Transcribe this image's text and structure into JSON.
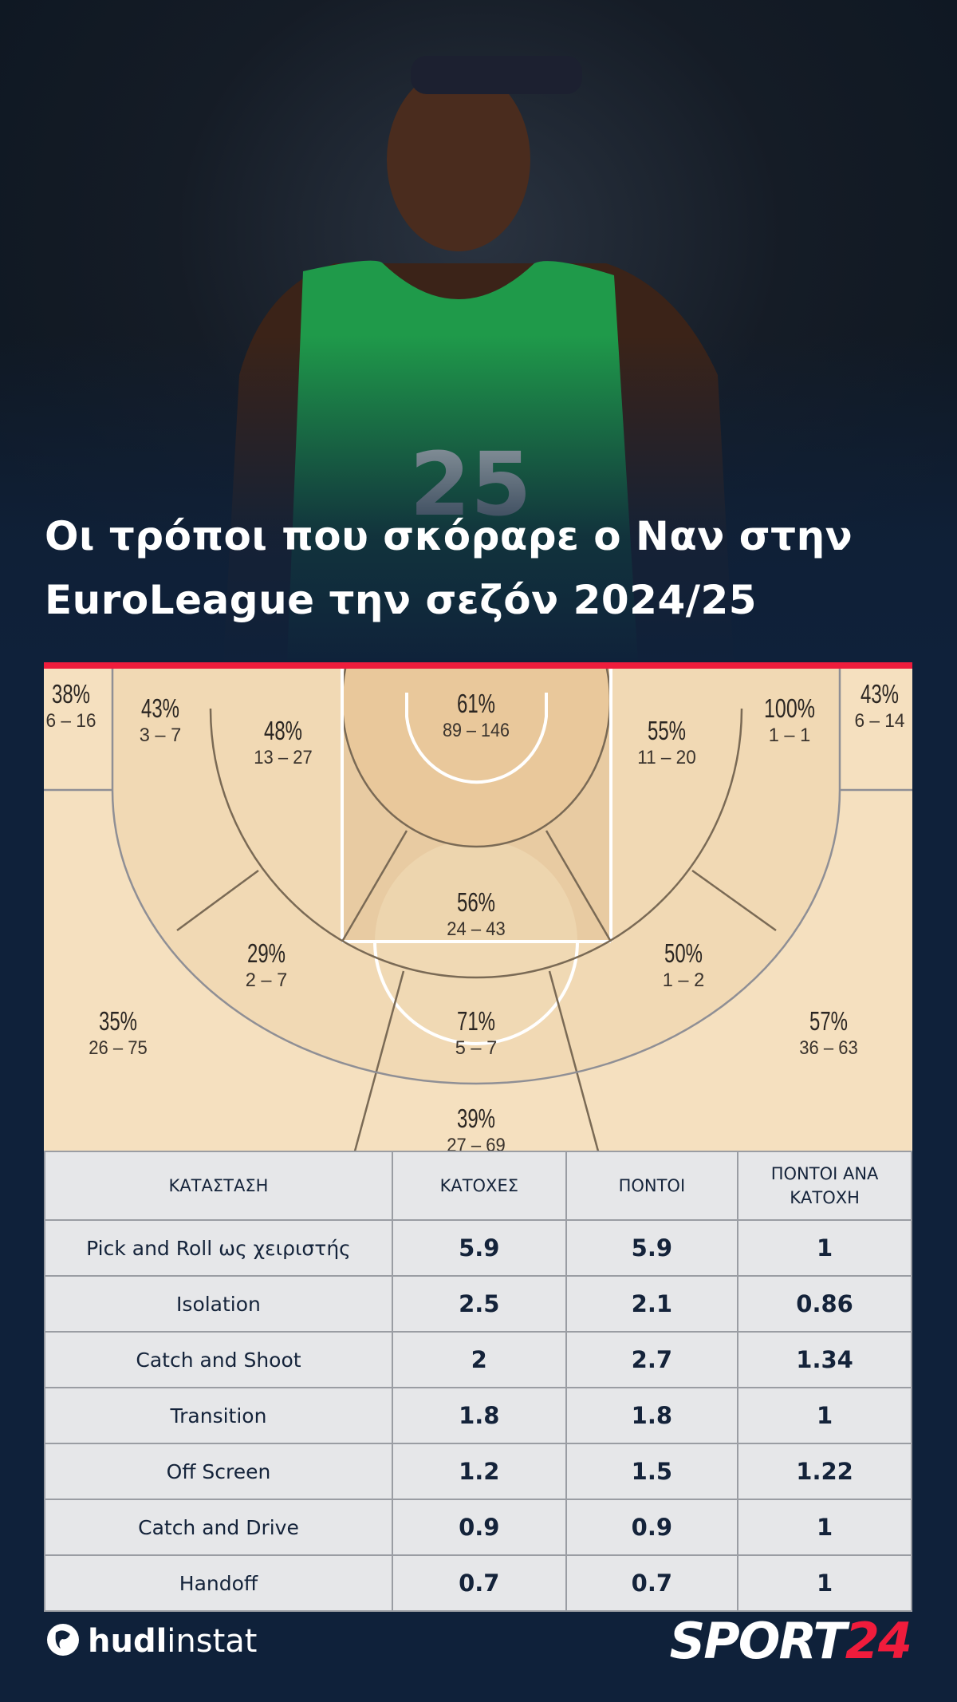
{
  "title": {
    "line1": "Οι τρόποι που σκόραρε ο Ναν στην",
    "line2": "EuroLeague την σεζόν 2024/25"
  },
  "colors": {
    "accent": "#ef1c3c",
    "background": "#0f213a",
    "court": "#f3dcb8",
    "table_bg": "#e6e7e9"
  },
  "chart_data": {
    "type": "heatmap",
    "description_type": "shot-chart",
    "zones": [
      {
        "zone": "left-corner-3",
        "pct": "38%",
        "made_att": "6 – 16"
      },
      {
        "zone": "left-baseline-mid",
        "pct": "43%",
        "made_att": "3 – 7"
      },
      {
        "zone": "left-short-mid",
        "pct": "48%",
        "made_att": "13 – 27"
      },
      {
        "zone": "restricted-area",
        "pct": "61%",
        "made_att": "89 – 146"
      },
      {
        "zone": "right-short-mid",
        "pct": "55%",
        "made_att": "11 – 20"
      },
      {
        "zone": "right-baseline-mid",
        "pct": "100%",
        "made_att": "1 – 1"
      },
      {
        "zone": "right-corner-3",
        "pct": "43%",
        "made_att": "6 – 14"
      },
      {
        "zone": "paint",
        "pct": "56%",
        "made_att": "24 – 43"
      },
      {
        "zone": "left-elbow-mid",
        "pct": "29%",
        "made_att": "2 – 7"
      },
      {
        "zone": "right-elbow-mid",
        "pct": "50%",
        "made_att": "1 – 2"
      },
      {
        "zone": "left-wing-3",
        "pct": "35%",
        "made_att": "26 – 75"
      },
      {
        "zone": "top-mid",
        "pct": "71%",
        "made_att": "5 – 7"
      },
      {
        "zone": "right-wing-3",
        "pct": "57%",
        "made_att": "36 – 63"
      },
      {
        "zone": "top-3",
        "pct": "39%",
        "made_att": "27 – 69"
      }
    ]
  },
  "table": {
    "headers": [
      "ΚΑΤΑΣΤΑΣΗ",
      "ΚΑΤΟΧΕΣ",
      "ΠΟΝΤΟΙ",
      "ΠΟΝΤΟΙ ΑΝΑ ΚΑΤΟΧΗ"
    ],
    "rows": [
      [
        "Pick and Roll ως χειριστής",
        "5.9",
        "5.9",
        "1"
      ],
      [
        "Isolation",
        "2.5",
        "2.1",
        "0.86"
      ],
      [
        "Catch and Shoot",
        "2",
        "2.7",
        "1.34"
      ],
      [
        "Transition",
        "1.8",
        "1.8",
        "1"
      ],
      [
        "Off Screen",
        "1.2",
        "1.5",
        "1.22"
      ],
      [
        "Catch and Drive",
        "0.9",
        "0.9",
        "1"
      ],
      [
        "Handoff",
        "0.7",
        "0.7",
        "1"
      ]
    ]
  },
  "footer": {
    "hudl_bold": "hudl",
    "hudl_light": "instat",
    "sport": "SPORT",
    "sport_num": "24"
  },
  "photo": {
    "jersey_number": "25"
  }
}
